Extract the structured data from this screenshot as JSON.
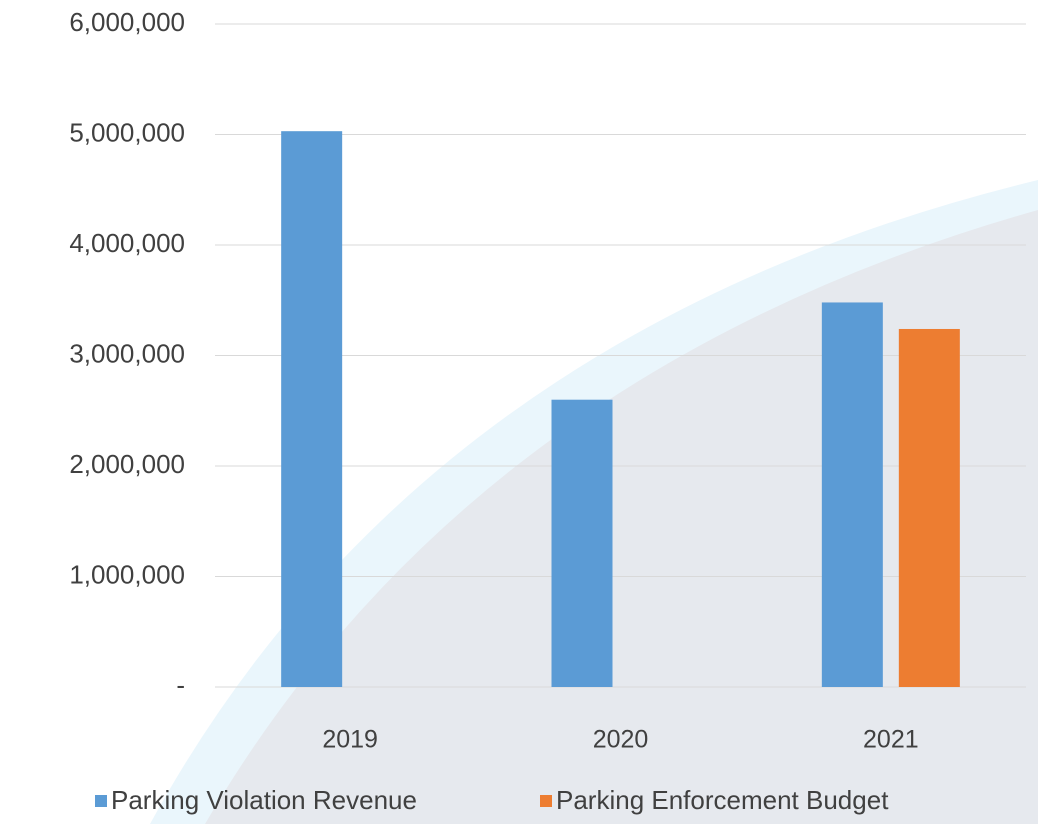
{
  "chart_data": {
    "type": "bar",
    "categories": [
      "2019",
      "2020",
      "2021"
    ],
    "series": [
      {
        "name": "Parking Violation Revenue",
        "color": "#5b9bd5",
        "values": [
          5030000,
          2600000,
          3480000
        ]
      },
      {
        "name": "Parking Enforcement Budget",
        "color": "#ed7d31",
        "values": [
          null,
          null,
          3240000
        ]
      }
    ],
    "ylim": [
      0,
      6000000
    ],
    "yticks": [
      {
        "value": 0,
        "label": "-"
      },
      {
        "value": 1000000,
        "label": "1,000,000"
      },
      {
        "value": 2000000,
        "label": "2,000,000"
      },
      {
        "value": 3000000,
        "label": "3,000,000"
      },
      {
        "value": 4000000,
        "label": "4,000,000"
      },
      {
        "value": 5000000,
        "label": "5,000,000"
      },
      {
        "value": 6000000,
        "label": "6,000,000"
      }
    ],
    "grid": true,
    "legend": "bottom"
  }
}
